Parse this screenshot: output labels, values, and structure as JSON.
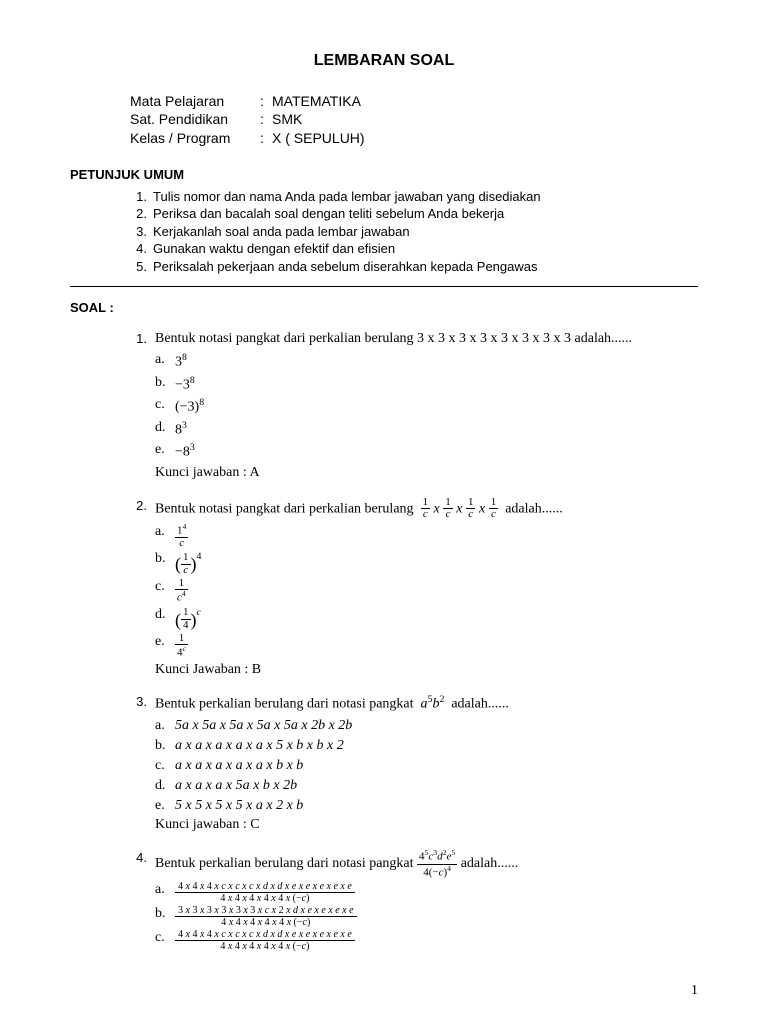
{
  "title": "LEMBARAN SOAL",
  "meta": [
    {
      "label": "Mata Pelajaran",
      "value": "MATEMATIKA"
    },
    {
      "label": "Sat. Pendidikan",
      "value": "SMK"
    },
    {
      "label": "Kelas / Program",
      "value": "X  ( SEPULUH)"
    }
  ],
  "instructions_header": "PETUNJUK UMUM",
  "instructions": [
    "Tulis nomor dan nama Anda pada lembar jawaban yang disediakan",
    "Periksa dan bacalah soal dengan teliti sebelum Anda bekerja",
    "Kerjakanlah soal anda pada lembar jawaban",
    "Gunakan waktu dengan efektif dan efisien",
    "Periksalah pekerjaan anda sebelum diserahkan kepada Pengawas"
  ],
  "soal_label": "SOAL :",
  "questions": [
    {
      "num": "1.",
      "text_html": "Bentuk notasi pangkat dari perkalian berulang 3 x 3 x 3 x 3 x 3 x 3 x 3 x 3 adalah......",
      "options": [
        {
          "letter": "a.",
          "html": "3<sup>8</sup>"
        },
        {
          "letter": "b.",
          "html": "−3<sup>8</sup>"
        },
        {
          "letter": "c.",
          "html": "(−3)<sup>8</sup>"
        },
        {
          "letter": "d.",
          "html": "8<sup>3</sup>"
        },
        {
          "letter": "e.",
          "html": "−8<sup>3</sup>"
        }
      ],
      "answer": "Kunci jawaban : A"
    },
    {
      "num": "2.",
      "text_html": "Bentuk notasi pangkat dari perkalian berulang &nbsp;<span class='frac'><span class='num'>1</span><span class='den'><span class='it'>c</span></span></span> <span class='it'>x</span> <span class='frac'><span class='num'>1</span><span class='den'><span class='it'>c</span></span></span> <span class='it'>x</span> <span class='frac'><span class='num'>1</span><span class='den'><span class='it'>c</span></span></span> <span class='it'>x</span> <span class='frac'><span class='num'>1</span><span class='den'><span class='it'>c</span></span></span>&nbsp; adalah......",
      "options": [
        {
          "letter": "a.",
          "html": "<span class='frac'><span class='num'>1<sup>4</sup></span><span class='den'><span class='it'>c</span></span></span>"
        },
        {
          "letter": "b.",
          "html": "<span class='big-paren'>(</span><span class='frac'><span class='num'>1</span><span class='den'><span class='it'>c</span></span></span><span class='big-paren'>)</span><sup style='vertical-align:8px'>4</sup>"
        },
        {
          "letter": "c.",
          "html": "<span class='frac'><span class='num'>1</span><span class='den'><span class='it'>c</span><sup>4</sup></span></span>"
        },
        {
          "letter": "d.",
          "html": "<span class='big-paren'>(</span><span class='frac'><span class='num'>1</span><span class='den'>4</span></span><span class='big-paren'>)</span><sup style='vertical-align:8px'><span class='it'>c</span></sup>"
        },
        {
          "letter": "e.",
          "html": "<span class='frac'><span class='num'>1</span><span class='den'>4<sup><span class='it'>c</span></sup></span></span>"
        }
      ],
      "answer": "Kunci Jawaban : B"
    },
    {
      "num": "3.",
      "text_html": "Bentuk perkalian berulang dari notasi pangkat &nbsp;<span class='it'>a</span><sup>5</sup><span class='it'>b</span><sup>2</sup>&nbsp; adalah......",
      "options": [
        {
          "letter": "a.",
          "html": "<span class='it'>5a x 5a x 5a x 5a x 5a x 2b x 2b</span>"
        },
        {
          "letter": "b.",
          "html": "<span class='it'>a x a x a x a x a x 5 x b x b x 2</span>"
        },
        {
          "letter": "c.",
          "html": "<span class='it'>a x a x a x a x a x b x b</span>"
        },
        {
          "letter": "d.",
          "html": "<span class='it'>a x a x a x 5a x b x 2b</span>"
        },
        {
          "letter": "e.",
          "html": "<span class='it'>5  x 5 x 5 x 5 x a x 2 x b</span>"
        }
      ],
      "answer": "Kunci jawaban : C"
    },
    {
      "num": "4.",
      "text_html": "Bentuk perkalian berulang dari notasi pangkat <span class='frac'><span class='num'>4<sup>5</sup><span class='it'>c</span><sup>3</sup><span class='it'>d</span><sup>2</sup><span class='it'>e</span><sup>5</sup></span><span class='den'>4(−<span class='it'>c</span>)<sup>4</sup></span></span> adalah......",
      "options": [
        {
          "letter": "a.",
          "html": "<span class='lfrac'><span class='num'>4 <span class=\"it\">x</span> 4 <span class=\"it\">x</span> 4 <span class=\"it\">x c x c x c x d x d x e x e x e x e x e</span></span><span class='den'>4 <span class=\"it\">x</span> 4 <span class=\"it\">x</span> 4 <span class=\"it\">x</span> 4 <span class=\"it\">x</span> 4 <span class=\"it\">x</span> (−<span class=\"it\">c</span>)</span></span>"
        },
        {
          "letter": "b.",
          "html": "<span class='lfrac'><span class='num'>3 <span class=\"it\">x</span> 3 <span class=\"it\">x</span> 3 <span class=\"it\">x</span> 3 <span class=\"it\">x</span> 3 <span class=\"it\">x</span> 3 <span class=\"it\">x c x</span> 2 <span class=\"it\">x d x e x e x e x e</span></span><span class='den'>4 <span class=\"it\">x</span> 4 <span class=\"it\">x</span> 4 <span class=\"it\">x</span> 4 <span class=\"it\">x</span> 4 <span class=\"it\">x</span> (−<span class=\"it\">c</span>)</span></span>"
        },
        {
          "letter": "c.",
          "html": "<span class='lfrac'><span class='num'>4 <span class=\"it\">x</span> 4 <span class=\"it\">x</span> 4 <span class=\"it\">x c x c x c x d x d x e x e x e x e x e</span></span><span class='den'>4 <span class=\"it\">x</span> 4 <span class=\"it\">x</span> 4 <span class=\"it\">x</span> 4 <span class=\"it\">x</span> 4 <span class=\"it\">x</span> (−<span class=\"it\">c</span>)</span></span>"
        }
      ],
      "answer": ""
    }
  ],
  "page_number": "1"
}
